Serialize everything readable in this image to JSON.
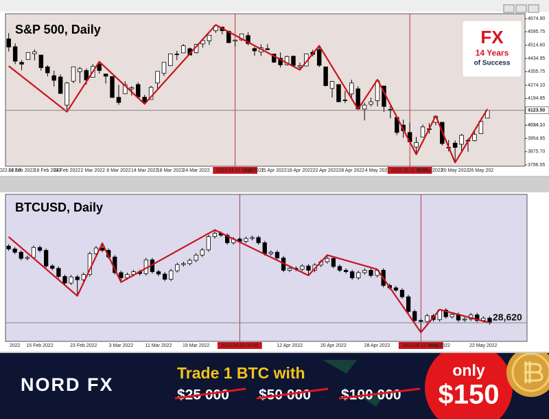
{
  "chart_data": [
    {
      "type": "candlestick",
      "title": "S&P 500, Daily",
      "background": "#e8dedb",
      "up_color": "#ffffff",
      "down_color": "#000000",
      "wick_color": "#000000",
      "categories": [
        "2022.02.10",
        null,
        "14 Feb 2022",
        null,
        null,
        null,
        "18 Feb 2022",
        null,
        null,
        "24 Feb 2022",
        null,
        null,
        null,
        "2 Mar 2022",
        null,
        null,
        null,
        "8 Mar 2022",
        null,
        null,
        null,
        "14 Mar 2022",
        null,
        null,
        null,
        "18 Mar 2022",
        null,
        null,
        null,
        "24 Mar 2022",
        null,
        null,
        null,
        null,
        null,
        "2022.04.01 00:00",
        null,
        null,
        "Apr 2022",
        null,
        null,
        "11 Apr 2022",
        null,
        null,
        null,
        "18 Apr 2022",
        null,
        null,
        null,
        "22 Apr 2022",
        null,
        null,
        null,
        "28 Apr 2022",
        null,
        null,
        null,
        "4 May 2022",
        null,
        null,
        null,
        null,
        "2022.05.11 00:00",
        null,
        null,
        "16 May 2022",
        null,
        null,
        null,
        "20 May 2022",
        null,
        null,
        null,
        "26 May 202",
        null
      ],
      "open": [
        4553,
        4506,
        4412,
        4429,
        4464,
        4456,
        4385,
        4332,
        4324,
        4155,
        4299,
        4355,
        4363,
        4322,
        4401,
        4342,
        4327,
        4202,
        4224,
        4253,
        4279,
        4203,
        4189,
        4288,
        4346,
        4392,
        4462,
        4469,
        4494,
        4470,
        4523,
        4541,
        4602,
        4624,
        4599,
        4540,
        4547,
        4573,
        4495,
        4474,
        4494,
        4462,
        4437,
        4398,
        4449,
        4385,
        4390,
        4473,
        4489,
        4385,
        4255,
        4279,
        4186,
        4222,
        4253,
        4131,
        4160,
        4182,
        4270,
        4129,
        4081,
        4035,
        3991,
        3903,
        3963,
        4013,
        4052,
        4052,
        3900,
        3927,
        3920,
        3943,
        3942,
        3984,
        4077
      ],
      "high": [
        4588,
        4526,
        4426,
        4472,
        4490,
        4456,
        4395,
        4362,
        4340,
        4295,
        4385,
        4385,
        4375,
        4401,
        4416,
        4343,
        4327,
        4277,
        4299,
        4269,
        4292,
        4217,
        4271,
        4358,
        4412,
        4465,
        4481,
        4522,
        4501,
        4520,
        4546,
        4575,
        4637,
        4627,
        4603,
        4548,
        4583,
        4593,
        4504,
        4521,
        4521,
        4464,
        4471,
        4453,
        4453,
        4410,
        4466,
        4488,
        4512,
        4386,
        4300,
        4279,
        4241,
        4308,
        4269,
        4170,
        4200,
        4308,
        4270,
        4158,
        4082,
        4068,
        4050,
        3964,
        4038,
        4047,
        4090,
        4052,
        3946,
        3943,
        3982,
        3955,
        4000,
        4076,
        4131
      ],
      "low": [
        4477,
        4401,
        4365,
        4429,
        4424,
        4362,
        4328,
        4267,
        4223,
        4115,
        4287,
        4287,
        4279,
        4322,
        4345,
        4285,
        4199,
        4157,
        4224,
        4212,
        4200,
        4162,
        4188,
        4254,
        4330,
        4390,
        4425,
        4469,
        4455,
        4465,
        4501,
        4517,
        4589,
        4581,
        4530,
        4507,
        4540,
        4514,
        4452,
        4450,
        4487,
        4408,
        4381,
        4393,
        4392,
        4367,
        4390,
        4448,
        4384,
        4268,
        4200,
        4175,
        4167,
        4188,
        4131,
        4063,
        4147,
        4148,
        4114,
        4076,
        3975,
        3959,
        3929,
        3859,
        3962,
        3983,
        4034,
        3913,
        3877,
        3810,
        3876,
        3875,
        3937,
        3984,
        4077
      ],
      "close": [
        4504,
        4419,
        4401,
        4471,
        4475,
        4380,
        4349,
        4304,
        4225,
        4288,
        4385,
        4374,
        4306,
        4387,
        4363,
        4329,
        4201,
        4171,
        4278,
        4260,
        4204,
        4173,
        4262,
        4358,
        4412,
        4463,
        4461,
        4512,
        4456,
        4520,
        4543,
        4575,
        4632,
        4602,
        4530,
        4546,
        4583,
        4525,
        4481,
        4500,
        4488,
        4413,
        4397,
        4447,
        4393,
        4392,
        4463,
        4460,
        4394,
        4272,
        4297,
        4175,
        4183,
        4288,
        4132,
        4155,
        4175,
        4300,
        4147,
        4123,
        3991,
        4001,
        3935,
        3930,
        4024,
        4008,
        4088,
        3924,
        3901,
        3901,
        3974,
        3941,
        3979,
        4058,
        4123.5
      ],
      "ylim": [
        3788,
        4704
      ],
      "yticks": [
        {
          "value": 4674.9,
          "label": "4674.90"
        },
        4595.75,
        {
          "value": 4514.6,
          "label": "4514.60"
        },
        4434.95,
        4355.75,
        {
          "value": 4274.1,
          "label": "4274.10"
        },
        4194.85,
        {
          "value": 4034.1,
          "label": "4034.10"
        },
        4034.1,
        3954.95,
        {
          "value": 3875.7,
          "label": "3875.70"
        },
        3796.55
      ],
      "price_label": {
        "value": 4123.5,
        "label": "4123.50"
      },
      "crosshair_x": [
        35,
        62
      ],
      "trendline": {
        "color": "#c8141e",
        "x": [
          0,
          9,
          14,
          21,
          32,
          45,
          48,
          54,
          57,
          63,
          66,
          69,
          74
        ],
        "values": [
          4390,
          4115,
          4416,
          4162,
          4637,
          4367,
          4512,
          4131,
          4308,
          3859,
          4090,
          3810,
          4131
        ]
      }
    },
    {
      "type": "candlestick",
      "title": "BTCUSD, Daily",
      "background": "#dcdaec",
      "up_color": "#ffffff",
      "down_color": "#000000",
      "wick_color": "#000000",
      "categories": [
        null,
        "2022",
        null,
        null,
        null,
        "15 Feb 2022",
        null,
        null,
        null,
        null,
        null,
        null,
        "23 Feb 2022",
        null,
        null,
        null,
        null,
        null,
        "3 Mar 2022",
        null,
        null,
        null,
        null,
        null,
        "11 Mar 2022",
        null,
        null,
        null,
        null,
        null,
        "19 Mar 2022",
        null,
        null,
        null,
        null,
        null,
        null,
        "2022.04.01 00:00",
        null,
        null,
        null,
        null,
        null,
        null,
        null,
        "12 Apr 2022",
        null,
        null,
        null,
        null,
        null,
        null,
        "20 Apr 2022",
        null,
        null,
        null,
        null,
        null,
        null,
        "28 Apr 2022",
        null,
        null,
        null,
        null,
        null,
        null,
        "2022.05.11 00:00",
        null,
        null,
        "May 2022",
        null,
        null,
        null,
        null,
        null,
        null,
        "22 May 2022",
        null
      ],
      "open": [
        44800,
        44200,
        43500,
        42200,
        42400,
        44500,
        43900,
        40600,
        40100,
        38400,
        37000,
        38300,
        37700,
        38800,
        43200,
        44400,
        43900,
        42500,
        39200,
        38100,
        38800,
        39400,
        39000,
        41900,
        39400,
        38900,
        37800,
        39600,
        40900,
        41100,
        41800,
        42900,
        44000,
        46800,
        47500,
        47100,
        45500,
        46300,
        45800,
        46400,
        46600,
        45500,
        43200,
        43500,
        42300,
        39700,
        40100,
        39900,
        40600,
        39700,
        40800,
        41500,
        42200,
        40500,
        39700,
        39400,
        38100,
        39200,
        39700,
        38600,
        39700,
        36500,
        36000,
        35500,
        34100,
        31000,
        29100,
        28900,
        30100,
        29300,
        31300,
        29900,
        30400,
        29200,
        29400,
        30300,
        29100,
        29600
      ],
      "high": [
        45200,
        44600,
        43900,
        42800,
        44900,
        44900,
        44300,
        41000,
        40500,
        38800,
        38700,
        38700,
        39200,
        43600,
        44800,
        45400,
        44300,
        42900,
        39600,
        39200,
        39800,
        39800,
        42300,
        42300,
        39800,
        39300,
        40000,
        41300,
        41500,
        42200,
        43300,
        44400,
        47200,
        48200,
        47900,
        47500,
        46700,
        46700,
        46800,
        47000,
        47000,
        45900,
        43900,
        43900,
        42700,
        40500,
        40500,
        41000,
        41000,
        41200,
        41900,
        42900,
        42600,
        40900,
        40100,
        39800,
        39600,
        40100,
        40100,
        39900,
        40100,
        36900,
        36400,
        35900,
        34500,
        31400,
        29500,
        30500,
        30500,
        31400,
        31700,
        30800,
        30800,
        29800,
        30700,
        30700,
        30000,
        30000
      ],
      "low": [
        43800,
        43100,
        41800,
        41800,
        42000,
        43500,
        40200,
        39700,
        38000,
        36600,
        36600,
        34300,
        37300,
        38400,
        42800,
        43500,
        42100,
        38800,
        37200,
        37700,
        38400,
        38600,
        38600,
        39000,
        38500,
        37400,
        37400,
        39200,
        40500,
        40700,
        41400,
        42500,
        43600,
        46400,
        46700,
        45100,
        45100,
        45400,
        45400,
        46000,
        45100,
        42800,
        42800,
        41900,
        39300,
        39300,
        39500,
        39500,
        38600,
        39300,
        40400,
        41100,
        40100,
        39300,
        39000,
        37700,
        37700,
        38800,
        38200,
        38200,
        36100,
        35600,
        35100,
        33700,
        30600,
        28700,
        26600,
        28500,
        28900,
        28900,
        29500,
        29500,
        28800,
        28800,
        29000,
        28700,
        28700,
        28220
      ],
      "close": [
        44200,
        43500,
        42200,
        42400,
        44500,
        43900,
        40600,
        40100,
        38400,
        37000,
        38300,
        37700,
        38800,
        43200,
        44400,
        43900,
        42500,
        39200,
        38100,
        38800,
        39400,
        39000,
        41900,
        39400,
        38900,
        37800,
        39600,
        40900,
        41100,
        41800,
        42900,
        44000,
        46800,
        47500,
        47100,
        45500,
        46300,
        45800,
        46400,
        46600,
        45500,
        43200,
        43500,
        42300,
        39700,
        40100,
        39900,
        40600,
        39700,
        40800,
        41500,
        42200,
        40500,
        39700,
        39400,
        38100,
        39200,
        39700,
        38600,
        39700,
        36500,
        36000,
        35500,
        34100,
        31000,
        29100,
        28900,
        30100,
        29300,
        31300,
        29900,
        30400,
        29200,
        29400,
        30300,
        29100,
        29600,
        28620
      ],
      "ylim": [
        24700,
        55700
      ],
      "price_label": {
        "value": 28620,
        "label": "28,620"
      },
      "crosshair_x": [
        37,
        66
      ],
      "trendline": {
        "color": "#c8141e",
        "x": [
          0,
          11,
          15,
          18,
          33,
          48,
          51,
          59,
          66,
          69,
          77
        ],
        "values": [
          46750,
          34300,
          45400,
          37200,
          48200,
          38600,
          42900,
          39900,
          26600,
          31400,
          28620
        ]
      }
    }
  ],
  "logo": {
    "mark": "FX",
    "line1": "14 Years",
    "line2": "of Success"
  },
  "banner": {
    "brand": "NORD FX",
    "headline": "Trade 1 BTC with",
    "old_prices": [
      "$25 000",
      "$50 000",
      "$100 000"
    ],
    "only": "only",
    "price": "$150"
  }
}
